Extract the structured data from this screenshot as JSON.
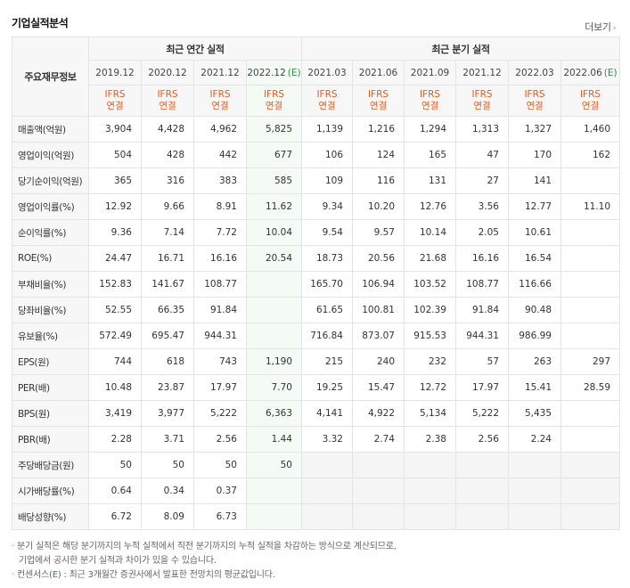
{
  "header": {
    "title": "기업실적분석",
    "more_label": "더보기"
  },
  "table": {
    "corner_label": "주요재무정보",
    "annual_group": "최근 연간 실적",
    "quarter_group": "최근 분기 실적",
    "annual_periods": [
      "2019.12",
      "2020.12",
      "2021.12",
      "2022.12"
    ],
    "annual_est_mark": "(E)",
    "quarter_periods": [
      "2021.03",
      "2021.06",
      "2021.09",
      "2021.12",
      "2022.03",
      "2022.06"
    ],
    "quarter_est_mark": "(E)",
    "ifrs_line1": "IFRS",
    "ifrs_line2": "연결",
    "rows": [
      {
        "label": "매출액(억원)",
        "group_start": true,
        "values": [
          "3,904",
          "4,428",
          "4,962",
          "5,825",
          "1,139",
          "1,216",
          "1,294",
          "1,313",
          "1,327",
          "1,460"
        ]
      },
      {
        "label": "영업이익(억원)",
        "values": [
          "504",
          "428",
          "442",
          "677",
          "106",
          "124",
          "165",
          "47",
          "170",
          "162"
        ]
      },
      {
        "label": "당기순이익(억원)",
        "values": [
          "365",
          "316",
          "383",
          "585",
          "109",
          "116",
          "131",
          "27",
          "141",
          ""
        ]
      },
      {
        "label": "영업이익률(%)",
        "group_start": true,
        "values": [
          "12.92",
          "9.66",
          "8.91",
          "11.62",
          "9.34",
          "10.20",
          "12.76",
          "3.56",
          "12.77",
          "11.10"
        ]
      },
      {
        "label": "순이익률(%)",
        "values": [
          "9.36",
          "7.14",
          "7.72",
          "10.04",
          "9.54",
          "9.57",
          "10.14",
          "2.05",
          "10.61",
          ""
        ]
      },
      {
        "label": "ROE(%)",
        "values": [
          "24.47",
          "16.71",
          "16.16",
          "20.54",
          "18.73",
          "20.56",
          "21.68",
          "16.16",
          "16.54",
          ""
        ]
      },
      {
        "label": "부채비율(%)",
        "group_start": true,
        "values": [
          "152.83",
          "141.67",
          "108.77",
          "",
          "165.70",
          "106.94",
          "103.52",
          "108.77",
          "116.66",
          ""
        ]
      },
      {
        "label": "당좌비율(%)",
        "values": [
          "52.55",
          "66.35",
          "91.84",
          "",
          "61.65",
          "100.81",
          "102.39",
          "91.84",
          "90.48",
          ""
        ]
      },
      {
        "label": "유보율(%)",
        "values": [
          "572.49",
          "695.47",
          "944.31",
          "",
          "716.84",
          "873.07",
          "915.53",
          "944.31",
          "986.99",
          ""
        ]
      },
      {
        "label": "EPS(원)",
        "group_start": true,
        "values": [
          "744",
          "618",
          "743",
          "1,190",
          "215",
          "240",
          "232",
          "57",
          "263",
          "297"
        ]
      },
      {
        "label": "PER(배)",
        "values": [
          "10.48",
          "23.87",
          "17.97",
          "7.70",
          "19.25",
          "15.47",
          "12.72",
          "17.97",
          "15.41",
          "28.59"
        ]
      },
      {
        "label": "BPS(원)",
        "values": [
          "3,419",
          "3,977",
          "5,222",
          "6,363",
          "4,141",
          "4,922",
          "5,134",
          "5,222",
          "5,435",
          ""
        ]
      },
      {
        "label": "PBR(배)",
        "values": [
          "2.28",
          "3.71",
          "2.56",
          "1.44",
          "3.32",
          "2.74",
          "2.38",
          "2.56",
          "2.24",
          ""
        ]
      },
      {
        "label": "주당배당금(원)",
        "group_start": true,
        "values": [
          "50",
          "50",
          "50",
          "50",
          "",
          "",
          "",
          "",
          "",
          ""
        ]
      },
      {
        "label": "시가배당률(%)",
        "values": [
          "0.64",
          "0.34",
          "0.37",
          "",
          "",
          "",
          "",
          "",
          "",
          ""
        ]
      },
      {
        "label": "배당성향(%)",
        "values": [
          "6.72",
          "8.09",
          "6.73",
          "",
          "",
          "",
          "",
          "",
          "",
          ""
        ]
      }
    ]
  },
  "notes": {
    "line1": "분기 실적은 해당 분기까지의 누적 실적에서 직전 분기까지의 누적 실적을 차감하는 방식으로 계산되므로,",
    "line2": "기업에서 공시한 분기 실적과 차이가 있을 수 있습니다.",
    "line3_prefix": "컨센서스(",
    "line3_mark": "E",
    "line3_suffix": ") : 최근 3개월간 증권사에서 발표한 전망치의 평균값입니다."
  }
}
